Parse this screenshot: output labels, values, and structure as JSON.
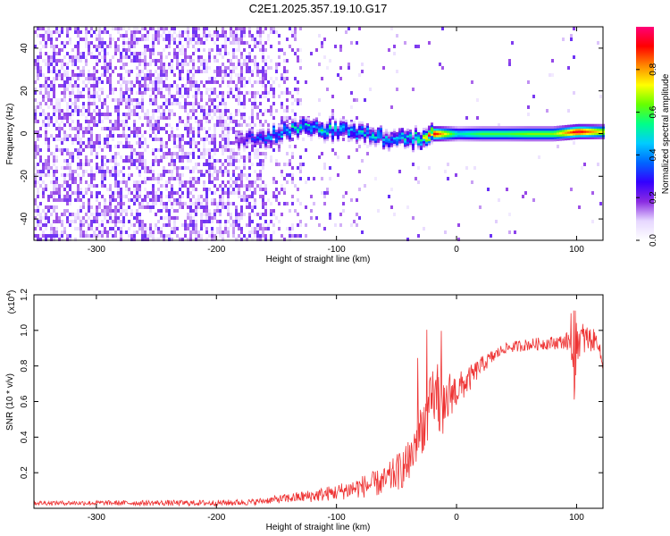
{
  "title": "C2E1.2025.357.19.10.G17",
  "chart_data": [
    {
      "type": "heatmap",
      "name": "spectrogram",
      "xlabel": "Height of straight line (km)",
      "ylabel": "Frequency (Hz)",
      "xlim": [
        -352,
        122
      ],
      "ylim": [
        -50,
        50
      ],
      "xticks": [
        -300,
        -200,
        -100,
        0,
        100
      ],
      "xtick_labels": [
        "-300",
        "-200",
        "-100",
        "0",
        "100"
      ],
      "yticks": [
        -40,
        -20,
        0,
        20,
        40
      ],
      "ytick_labels": [
        "-40",
        "-20",
        "0",
        "20",
        "40"
      ],
      "colorbar": {
        "label": "Normalized spectral amplitude",
        "range": [
          0,
          1
        ],
        "ticks": [
          0.0,
          0.2,
          0.4,
          0.6,
          0.8
        ],
        "tick_labels": [
          "0.0",
          "0.2",
          "0.4",
          "0.6",
          "0.8"
        ],
        "colormap": [
          "#ffffff",
          "#e6d7ff",
          "#8a2be2",
          "#3300ff",
          "#0066ff",
          "#00ccff",
          "#00ff88",
          "#66ff00",
          "#ffff00",
          "#ff8800",
          "#ff0000",
          "#ff0077"
        ]
      },
      "noise_region_x": [
        -352,
        -160
      ],
      "signal_trace": {
        "x": [
          -185,
          -170,
          -150,
          -130,
          -110,
          -90,
          -70,
          -50,
          -30,
          -20,
          0,
          20,
          40,
          60,
          80,
          100,
          122
        ],
        "y": [
          -3,
          -2,
          0,
          3,
          2,
          1,
          -1,
          -3,
          -2,
          0,
          0,
          0,
          0,
          0,
          0,
          1,
          1
        ],
        "amplitude": [
          0.2,
          0.3,
          0.4,
          0.45,
          0.45,
          0.4,
          0.45,
          0.4,
          0.5,
          0.95,
          0.5,
          0.6,
          0.6,
          0.65,
          0.65,
          0.95,
          0.7
        ]
      }
    },
    {
      "type": "line",
      "name": "snr",
      "xlabel": "Height of straight line (km)",
      "ylabel": "SNR (10 * v/v)",
      "exponent_label": "(x10",
      "exponent_power": "4",
      "exponent_close": ")",
      "xlim": [
        -352,
        122
      ],
      "ylim": [
        0,
        1.2
      ],
      "xticks": [
        -300,
        -200,
        -100,
        0,
        100
      ],
      "xtick_labels": [
        "-300",
        "-200",
        "-100",
        "0",
        "100"
      ],
      "yticks": [
        0.2,
        0.4,
        0.6,
        0.8,
        1.0,
        1.2
      ],
      "ytick_labels": [
        "0.2",
        "0.4",
        "0.6",
        "0.8",
        "1.0",
        "1.2"
      ],
      "color": "#ee3333",
      "series": {
        "x": [
          -352,
          -300,
          -250,
          -200,
          -170,
          -150,
          -120,
          -100,
          -80,
          -60,
          -50,
          -40,
          -35,
          -30,
          -25,
          -20,
          -15,
          -10,
          -5,
          0,
          10,
          20,
          30,
          40,
          60,
          80,
          95,
          98,
          100,
          102,
          110,
          118,
          122
        ],
        "y": [
          0.03,
          0.03,
          0.03,
          0.03,
          0.035,
          0.05,
          0.07,
          0.09,
          0.12,
          0.15,
          0.2,
          0.25,
          0.35,
          0.45,
          0.5,
          0.6,
          0.62,
          0.55,
          0.65,
          0.66,
          0.72,
          0.8,
          0.85,
          0.9,
          0.92,
          0.93,
          0.94,
          0.6,
          0.96,
          0.95,
          0.95,
          0.94,
          0.78
        ]
      },
      "noise_amplitude": {
        "x": [
          -352,
          -160,
          -100,
          -60,
          -30,
          -15,
          0,
          20,
          40,
          90,
          100,
          122
        ],
        "y": [
          0.012,
          0.018,
          0.045,
          0.08,
          0.15,
          0.2,
          0.1,
          0.05,
          0.03,
          0.04,
          0.12,
          0.03
        ]
      }
    }
  ]
}
